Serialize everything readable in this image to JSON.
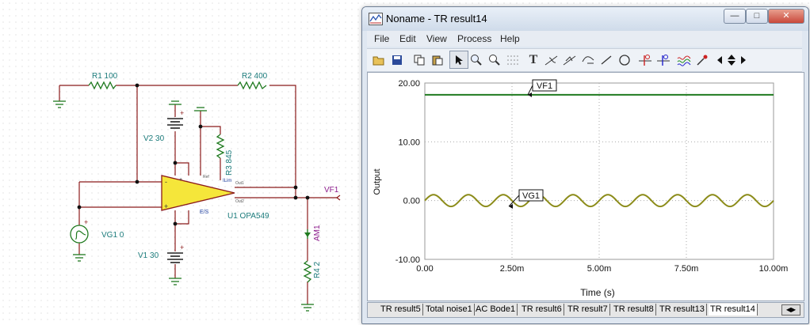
{
  "schematic": {
    "components": {
      "r1": "R1 100",
      "r2": "R2 400",
      "r3": "R3 845",
      "r4": "R4 2",
      "v1": "V1 30",
      "v2": "V2 30",
      "vg1": "VG1 0",
      "u1": "U1 OPA549",
      "am1": "AM1",
      "vf1": "VF1"
    },
    "pins": {
      "ilim": "ILim",
      "es": "E/S",
      "ref": "Ref",
      "out1": "Out1",
      "out2": "Out2",
      "minus": "-",
      "plus": "+"
    },
    "source_plus": "+",
    "wire_color": "#8b1a1a",
    "label_color": "#1a7a7a",
    "opamp_color": "#f5e63a"
  },
  "window": {
    "title": "Noname - TR result14",
    "controls": {
      "minimize": "—",
      "maximize": "□",
      "close": "✕"
    },
    "menu": [
      "File",
      "Edit",
      "View",
      "Process",
      "Help"
    ],
    "toolbar_icons": [
      "open-folder-icon",
      "save-icon",
      "copy-icon",
      "paste-icon",
      "pointer-icon",
      "zoom-in-icon",
      "zoom-100-icon",
      "grid-icon",
      "text-icon",
      "cursor-a-icon",
      "cursor-b-icon",
      "cursor-c-icon",
      "line-icon",
      "circle-icon",
      "cursor-red-icon",
      "cursor-blue-icon",
      "waveform-icon",
      "probe-icon",
      "arrow-left-icon",
      "arrow-updown-icon",
      "arrow-right-icon"
    ],
    "toolbar_text_label": "T",
    "tabs": [
      "TR result5",
      "Total noise1",
      "AC Bode1",
      "TR result6",
      "TR result7",
      "TR result8",
      "TR result13",
      "TR result14"
    ],
    "active_tab": "TR result14"
  },
  "chart_data": {
    "type": "line",
    "xlabel": "Time (s)",
    "ylabel": "Output",
    "xlim": [
      0,
      0.01
    ],
    "ylim": [
      -10,
      20
    ],
    "x_ticks": [
      "0.00",
      "2.50m",
      "5.00m",
      "7.50m",
      "10.00m"
    ],
    "y_ticks": [
      "20.00",
      "10.00",
      "0.00",
      "-10.00"
    ],
    "grid": true,
    "series": [
      {
        "name": "VF1",
        "color": "#1f7a1f",
        "kind": "constant",
        "value": 18
      },
      {
        "name": "VG1",
        "color": "#8c8c1a",
        "kind": "sine",
        "amplitude": 1,
        "frequency_hz": 1000,
        "offset": 0
      }
    ],
    "annotations": [
      "VF1",
      "VG1"
    ]
  }
}
